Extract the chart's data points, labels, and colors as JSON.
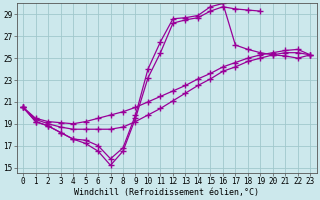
{
  "bg_color": "#cce8ec",
  "grid_color": "#a0c8cc",
  "line_color": "#990099",
  "marker": "+",
  "markersize": 4,
  "linewidth": 0.9,
  "markeredgewidth": 1.0,
  "xlabel": "Windchill (Refroidissement éolien,°C)",
  "xlabel_fontsize": 6.0,
  "tick_fontsize": 5.5,
  "xlim": [
    -0.5,
    23.5
  ],
  "ylim": [
    14.5,
    30.0
  ],
  "yticks": [
    15,
    17,
    19,
    21,
    23,
    25,
    27,
    29
  ],
  "xticks": [
    0,
    1,
    2,
    3,
    4,
    5,
    6,
    7,
    8,
    9,
    10,
    11,
    12,
    13,
    14,
    15,
    16,
    17,
    18,
    19,
    20,
    21,
    22,
    23
  ],
  "curves": [
    {
      "x": [
        0,
        1,
        2,
        3,
        4,
        5,
        6,
        7,
        8,
        9,
        10,
        11,
        12,
        13,
        14,
        15,
        16,
        17,
        18,
        19
      ],
      "y": [
        20.5,
        19.2,
        18.8,
        18.2,
        17.6,
        17.2,
        16.5,
        15.2,
        16.5,
        19.5,
        23.2,
        25.5,
        28.2,
        28.5,
        28.7,
        29.3,
        29.7,
        29.5,
        29.4,
        29.3
      ]
    },
    {
      "x": [
        0,
        1,
        2,
        3,
        4,
        5,
        6,
        7,
        8,
        9,
        10,
        11,
        12,
        13,
        14,
        15,
        16,
        17,
        18,
        19,
        20,
        21,
        22,
        23
      ],
      "y": [
        20.5,
        19.2,
        18.8,
        18.2,
        17.6,
        17.5,
        17.0,
        15.8,
        16.8,
        19.8,
        24.0,
        26.5,
        28.6,
        28.7,
        28.9,
        29.7,
        30.0,
        26.2,
        25.8,
        25.5,
        25.3,
        25.2,
        25.0,
        25.3
      ]
    },
    {
      "x": [
        0,
        1,
        2,
        3,
        4,
        5,
        6,
        7,
        8,
        9,
        10,
        11,
        12,
        13,
        14,
        15,
        16,
        17,
        18,
        19,
        20,
        21,
        22,
        23
      ],
      "y": [
        20.5,
        19.5,
        19.2,
        19.1,
        19.0,
        19.2,
        19.5,
        19.8,
        20.1,
        20.5,
        21.0,
        21.5,
        22.0,
        22.5,
        23.1,
        23.6,
        24.2,
        24.6,
        25.0,
        25.3,
        25.5,
        25.7,
        25.8,
        25.3
      ]
    },
    {
      "x": [
        0,
        1,
        2,
        3,
        4,
        5,
        6,
        7,
        8,
        9,
        10,
        11,
        12,
        13,
        14,
        15,
        16,
        17,
        18,
        19,
        20,
        21,
        22,
        23
      ],
      "y": [
        20.5,
        19.4,
        19.0,
        18.7,
        18.5,
        18.5,
        18.5,
        18.5,
        18.7,
        19.2,
        19.8,
        20.4,
        21.1,
        21.8,
        22.5,
        23.1,
        23.8,
        24.2,
        24.7,
        25.0,
        25.3,
        25.5,
        25.5,
        25.3
      ]
    }
  ]
}
